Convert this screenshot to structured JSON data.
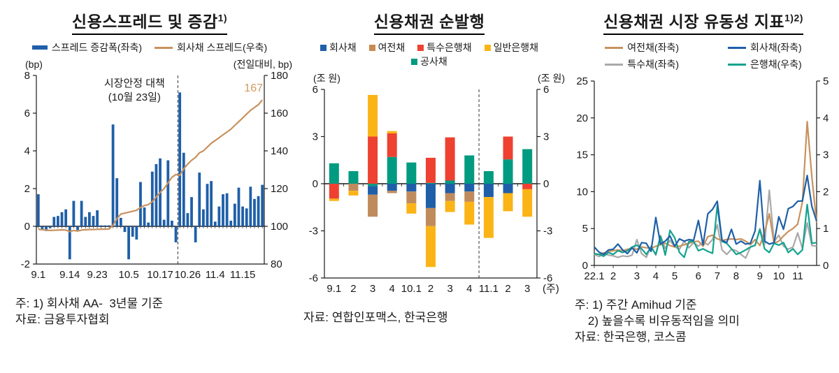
{
  "panels": [
    {
      "title": "신용스프레드 및 증감",
      "title_sup": "1)",
      "legend": [
        {
          "label": "스프레드 증감폭(좌축)",
          "color": "#1f5fa8",
          "swatch": "bar"
        },
        {
          "label": "회사채 스프레드(우축)",
          "color": "#c8925e",
          "swatch": "line"
        }
      ],
      "footnotes": [
        "주: 1) 회사채 AA-  3년물 기준",
        "자료: 금융투자협회"
      ]
    },
    {
      "title": "신용채권 순발행",
      "title_sup": "",
      "legend": [
        {
          "label": "회사채",
          "color": "#1f5fa8",
          "swatch": "square"
        },
        {
          "label": "여전채",
          "color": "#c98a52",
          "swatch": "square"
        },
        {
          "label": "특수은행채",
          "color": "#ee4131",
          "swatch": "square"
        },
        {
          "label": "일반은행채",
          "color": "#fbb416",
          "swatch": "square"
        },
        {
          "label": "공사채",
          "color": "#009b80",
          "swatch": "square"
        }
      ],
      "footnotes": [
        "자료: 연합인포맥스, 한국은행"
      ]
    },
    {
      "title": "신용채권 시장 유동성 지표",
      "title_sup": "1)2)",
      "legend": [
        {
          "label": "여전채(좌축)",
          "color": "#c8925e",
          "swatch": "line"
        },
        {
          "label": "회사채(좌축)",
          "color": "#1f5fa8",
          "swatch": "line"
        },
        {
          "label": "특수채(좌축)",
          "color": "#a9a9a9",
          "swatch": "line"
        },
        {
          "label": "은행채(우축)",
          "color": "#12a38e",
          "swatch": "line"
        }
      ],
      "footnotes": [
        "주: 1) 주간 Amihud 기준",
        "    2) 높을수록 비유동적임을 의미",
        "자료: 한국은행, 코스콤"
      ]
    }
  ],
  "chart_data": [
    {
      "type": "bar+line",
      "title": "신용스프레드 및 증감1)",
      "left_axis": {
        "min": -2,
        "max": 8,
        "ticks": [
          -2,
          0,
          2,
          4,
          6,
          8
        ],
        "unit": "(bp)"
      },
      "right_axis": {
        "min": 80,
        "max": 180,
        "ticks": [
          80,
          100,
          120,
          140,
          160,
          180
        ],
        "unit": "(전일대비, bp)"
      },
      "x_tick_labels": [
        "9.1",
        "9.14",
        "9.23",
        "10.5",
        "10.17",
        "10.26",
        "11.4",
        "11.15"
      ],
      "x_tick_positions": [
        0,
        8,
        15,
        23,
        31,
        38,
        45,
        52
      ],
      "dashed_line_at": 36,
      "annotation": [
        "시장안정 대책",
        "(10월 23일)"
      ],
      "end_label": {
        "text": "167",
        "value": 167
      },
      "bar_series": {
        "name": "스프레드 증감폭(좌축)",
        "color": "#1f5fa8",
        "values": [
          1.7,
          -0.2,
          -0.25,
          -0.1,
          0.5,
          0.55,
          0.75,
          0.9,
          -1.75,
          1.35,
          -0.2,
          1.35,
          0.5,
          0.75,
          0.55,
          0.85,
          0.05,
          0.05,
          0.05,
          5.4,
          2.55,
          0.45,
          -0.3,
          -1.75,
          -0.55,
          -0.7,
          2.35,
          1.0,
          0.2,
          2.9,
          3.3,
          3.6,
          0.35,
          3.5,
          0.3,
          -0.85,
          7.1,
          3.9,
          0.7,
          1.55,
          -0.85,
          2.85,
          0.9,
          2.25,
          2.4,
          0.25,
          1.05,
          1.7,
          1.75,
          0.3,
          1.2,
          2.05,
          1.05,
          0.95,
          2.1,
          1.45,
          1.6,
          2.2
        ]
      },
      "line_series": {
        "name": "회사채 스프레드(우축)",
        "color": "#c8925e",
        "values": [
          98.5,
          98.2,
          98,
          97.8,
          97.9,
          98,
          98.1,
          98,
          97.2,
          97.8,
          97.5,
          98,
          98.2,
          98.3,
          98.3,
          98.4,
          98.5,
          98.5,
          98.6,
          100.5,
          104,
          106.5,
          107,
          107.5,
          108,
          108.5,
          110,
          111,
          111.5,
          113,
          115.5,
          118,
          120,
          123,
          126,
          127.5,
          127,
          130.5,
          133,
          135,
          136.5,
          139,
          140,
          142,
          144,
          145.5,
          147,
          148.5,
          150,
          151.5,
          153.5,
          155.5,
          157.5,
          159.5,
          161.5,
          163,
          164.5,
          167
        ]
      }
    },
    {
      "type": "stacked-bar",
      "title": "신용채권 순발행",
      "axis": {
        "min": -6,
        "max": 6,
        "ticks": [
          -6,
          -3,
          0,
          3,
          6
        ],
        "unit": "(조 원)"
      },
      "categories": [
        "9.1",
        "2",
        "3",
        "4",
        "10.1",
        "2",
        "3",
        "4",
        "11.1",
        "2",
        "3"
      ],
      "x_suffix": "(주)",
      "dashed_after_index": 7,
      "stack_order": [
        4,
        0,
        1,
        2,
        3
      ],
      "series": [
        {
          "name": "회사채",
          "color": "#1f5fa8",
          "values": [
            0,
            0,
            -0.55,
            -0.45,
            -0.5,
            -1.55,
            -0.6,
            -0.5,
            -0.85,
            -0.6,
            0
          ]
        },
        {
          "name": "여전채",
          "color": "#c08b5c",
          "values": [
            0,
            -0.45,
            -1.4,
            -0.15,
            -0.75,
            -1.15,
            -0.5,
            -0.65,
            0,
            0,
            0
          ]
        },
        {
          "name": "특수은행채",
          "color": "#ee4131",
          "values": [
            -0.95,
            0,
            3.0,
            1.5,
            0,
            1.6,
            2.75,
            0,
            0,
            1.45,
            -0.35
          ]
        },
        {
          "name": "일반은행채",
          "color": "#fbb416",
          "values": [
            -0.15,
            -0.3,
            2.65,
            0.15,
            -0.65,
            -2.6,
            -0.7,
            -1.45,
            -2.6,
            -1.15,
            -1.75
          ]
        },
        {
          "name": "공사채",
          "color": "#009b80",
          "values": [
            1.3,
            0.8,
            -0.15,
            1.7,
            1.35,
            0.05,
            0.2,
            1.8,
            0.8,
            1.55,
            2.2
          ]
        }
      ]
    },
    {
      "type": "line",
      "title": "신용채권 시장 유동성 지표1)2)",
      "left_axis": {
        "min": 0,
        "max": 25,
        "ticks": [
          0,
          5,
          10,
          15,
          20,
          25
        ]
      },
      "right_axis": {
        "min": 0,
        "max": 5,
        "ticks": [
          0,
          1,
          2,
          3,
          4,
          5
        ]
      },
      "x_tick_labels": [
        "22.1",
        "2",
        "3",
        "4",
        "5",
        "6",
        "7",
        "8",
        "9",
        "10",
        "11"
      ],
      "x_tick_positions": [
        0,
        4,
        9,
        13,
        17,
        22,
        26,
        30,
        35,
        39,
        43
      ],
      "n_points": 48,
      "series": [
        {
          "name": "특수채(좌축)",
          "color": "#a9a9a9",
          "axis": "left",
          "values": [
            1.5,
            1.2,
            1.6,
            1.4,
            1.3,
            1.1,
            1.3,
            1.2,
            1.4,
            3.5,
            1.6,
            1.1,
            2.6,
            1.4,
            4.0,
            2.3,
            3.4,
            2.5,
            2.2,
            3.3,
            2.4,
            3.1,
            2.6,
            3.2,
            2.8,
            3.5,
            5.5,
            2.1,
            1.5,
            2.2,
            2.0,
            1.5,
            1.0,
            2.5,
            2.7,
            5.0,
            2.9,
            10.2,
            3.2,
            4.1,
            2.6,
            2.2,
            2.5,
            4.4,
            2.3,
            5.8,
            2.7,
            2.6
          ]
        },
        {
          "name": "여전채(좌축)",
          "color": "#c8925e",
          "axis": "left",
          "values": [
            1.6,
            1.5,
            1.7,
            1.9,
            2.0,
            2.1,
            2.0,
            2.2,
            2.3,
            2.2,
            2.5,
            2.4,
            2.3,
            2.6,
            2.8,
            3.0,
            2.7,
            2.5,
            2.6,
            2.8,
            3.0,
            3.2,
            3.3,
            2.6,
            3.9,
            4.1,
            3.6,
            3.4,
            3.5,
            3.6,
            3.5,
            3.6,
            3.3,
            2.8,
            3.5,
            2.7,
            4.5,
            7.0,
            3.0,
            3.3,
            4.0,
            4.6,
            5.0,
            5.6,
            8.6,
            19.5,
            12.0,
            5.8
          ]
        },
        {
          "name": "은행채(우축)",
          "color": "#12a38e",
          "axis": "right",
          "values": [
            0.32,
            0.3,
            0.25,
            0.35,
            0.3,
            0.4,
            0.35,
            0.4,
            0.5,
            0.55,
            0.45,
            0.3,
            0.5,
            0.3,
            0.8,
            0.28,
            0.95,
            0.75,
            0.35,
            0.22,
            0.65,
            0.65,
            0.4,
            0.45,
            0.38,
            0.33,
            1.62,
            0.65,
            0.6,
            0.45,
            0.3,
            0.35,
            0.42,
            0.5,
            0.55,
            0.97,
            0.45,
            0.35,
            0.6,
            0.55,
            0.62,
            0.35,
            0.45,
            0.3,
            0.42,
            1.65,
            0.6,
            0.62
          ]
        },
        {
          "name": "회사채(좌축)",
          "color": "#1f5fa8",
          "axis": "left",
          "values": [
            2.5,
            1.8,
            1.5,
            2.1,
            2.2,
            2.9,
            2.1,
            1.6,
            2.4,
            1.7,
            3.1,
            3.0,
            1.9,
            6.5,
            2.9,
            3.3,
            4.0,
            2.6,
            3.6,
            3.3,
            3.5,
            3.4,
            6.1,
            2.8,
            7.0,
            7.6,
            8.7,
            3.4,
            3.1,
            4.9,
            2.9,
            3.3,
            2.9,
            3.0,
            4.7,
            11.5,
            3.3,
            2.9,
            3.1,
            6.6,
            4.9,
            7.7,
            8.0,
            8.7,
            8.75,
            12.2,
            8.0,
            6.0
          ]
        }
      ]
    }
  ]
}
